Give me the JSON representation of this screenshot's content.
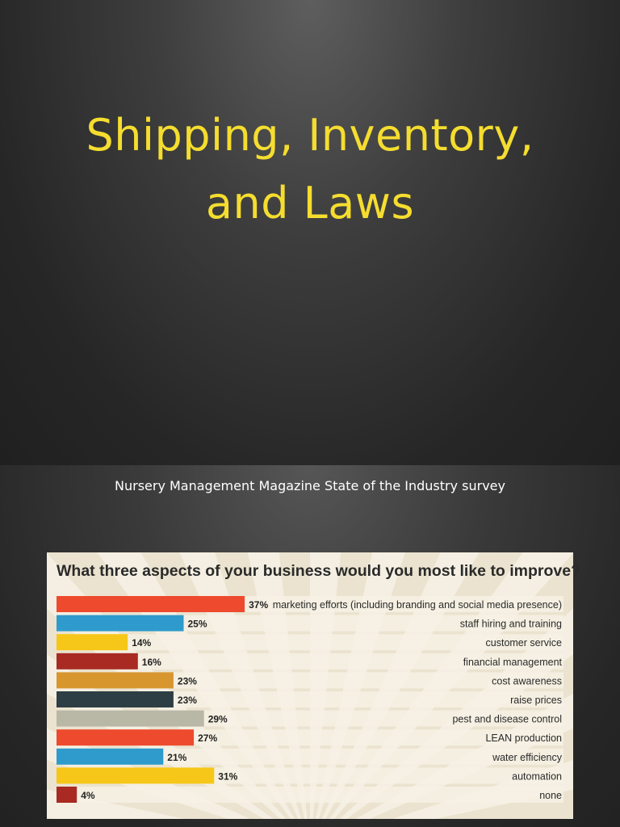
{
  "slide1": {
    "title_line1": "Shipping, Inventory,",
    "title_line2": "and Laws"
  },
  "slide2": {
    "subtitle": "Nursery Management Magazine State of the Industry survey"
  },
  "chart_data": {
    "type": "bar",
    "orientation": "horizontal",
    "title": "What three aspects of your business would you most like to improve?",
    "categories": [
      "marketing efforts (including branding and social media presence)",
      "staff hiring and training",
      "customer service",
      "financial management",
      "cost awareness",
      "raise prices",
      "pest and disease control",
      "LEAN production",
      "water efficiency",
      "automation",
      "none"
    ],
    "values": [
      37,
      25,
      14,
      16,
      23,
      23,
      29,
      27,
      21,
      31,
      4
    ],
    "value_labels": [
      "37%",
      "25%",
      "14%",
      "16%",
      "23%",
      "23%",
      "29%",
      "27%",
      "21%",
      "31%",
      "4%"
    ],
    "colors": [
      "#ee4a2e",
      "#2e9bcc",
      "#f6c718",
      "#a82a22",
      "#d8962f",
      "#2d3e45",
      "#b9b7a6",
      "#ee4a2e",
      "#2e9bcc",
      "#f6c718",
      "#a82a22"
    ],
    "unit": "%",
    "grid": false,
    "legend": "none"
  }
}
